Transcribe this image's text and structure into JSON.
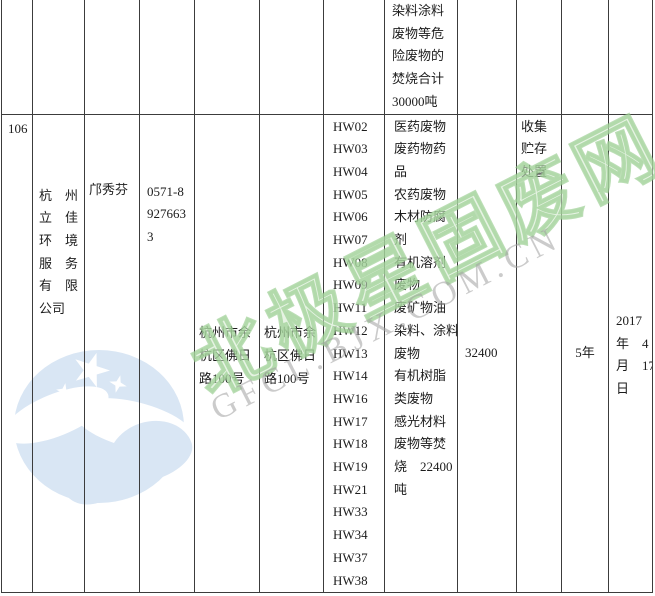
{
  "watermark": {
    "site_name": "北极星固废网",
    "site_url": "GFCL.BJX.COM.CN"
  },
  "colors": {
    "watermark_green": "#aed7a6",
    "watermark_gray": "#a0a0a0",
    "logo_blue": "#d9e6f4",
    "table_border": "#3c3c3c",
    "text": "#1c1c1c"
  },
  "table": {
    "prev_row": {
      "waste_total_lines": [
        "染料涂料",
        "废物等危",
        "险废物的",
        "焚烧合计",
        "30000吨"
      ]
    },
    "row": {
      "serial": "106",
      "company_lines": [
        "杭　州",
        "立　佳",
        "环　境",
        "服　务",
        "有　限",
        "公司"
      ],
      "company_full": "杭州立佳环境服务有限公司",
      "contact": "邝秀芬",
      "phone_lines": [
        "0571-8",
        "927663",
        "3"
      ],
      "phone_full": "0571-89276633",
      "address1_lines": [
        "杭州市余",
        "杭区佛日",
        "路100号"
      ],
      "address1_full": "杭州市余杭区佛日路100号",
      "address2_lines": [
        "杭州市余",
        "杭区佛日",
        "路100号"
      ],
      "address2_full": "杭州市余杭区佛日路100号",
      "hw_codes": [
        "HW02",
        "HW03",
        "HW04",
        "HW05",
        "HW06",
        "HW07",
        "HW08",
        "HW09",
        "HW11",
        "HW12",
        "HW13",
        "HW14",
        "HW16",
        "HW17",
        "HW18",
        "HW19",
        "HW21",
        "HW33",
        "HW34",
        "HW37",
        "HW38"
      ],
      "waste_lines": [
        "医药废物",
        "废药物药",
        "品",
        "农药废物",
        "木材防腐",
        "剂",
        "有机溶剂",
        "废物",
        "废矿物油",
        "染料、涂料",
        "废物",
        "有机树脂",
        "类废物",
        "感光材料",
        "废物等焚",
        "烧　22400",
        "吨"
      ],
      "capacity": "32400",
      "mode_lines": [
        "收集",
        "贮存",
        "处置"
      ],
      "validity": "5年",
      "date_lines": [
        "2017",
        "年　4",
        "月　17",
        "日"
      ],
      "date_full": "2017年4月17日"
    }
  }
}
